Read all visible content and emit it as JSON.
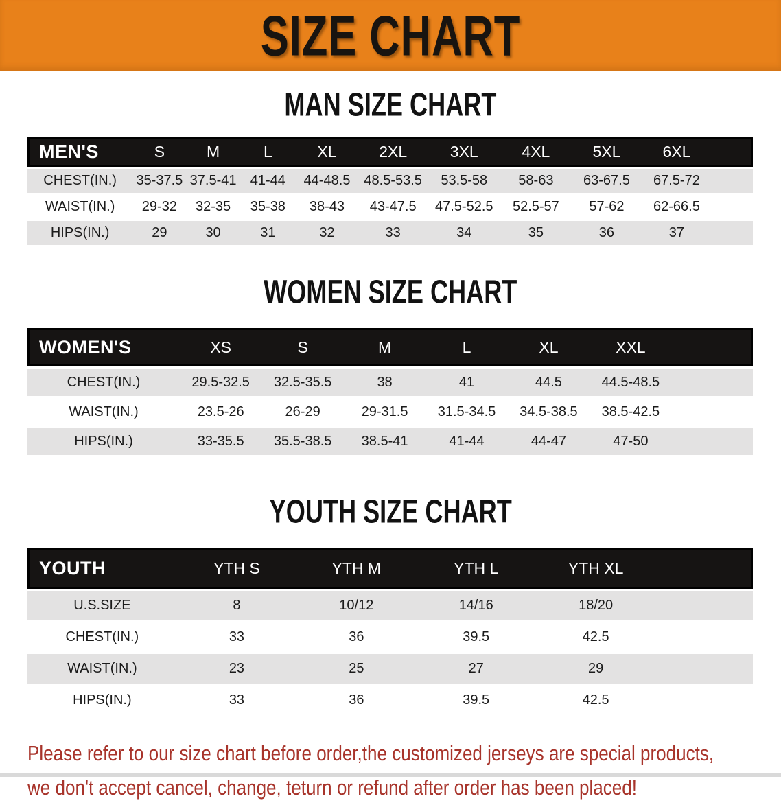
{
  "banner": {
    "title": "SIZE CHART",
    "bg_color": "#E8811A"
  },
  "sections": [
    {
      "heading": "MAN SIZE CHART",
      "table": {
        "header_label": "MEN'S",
        "columns": [
          "S",
          "M",
          "L",
          "XL",
          "2XL",
          "3XL",
          "4XL",
          "5XL",
          "6XL"
        ],
        "rows": [
          {
            "label": "CHEST(IN.)",
            "values": [
              "35-37.5",
              "37.5-41",
              "41-44",
              "44-48.5",
              "48.5-53.5",
              "53.5-58",
              "58-63",
              "63-67.5",
              "67.5-72"
            ]
          },
          {
            "label": "WAIST(IN.)",
            "values": [
              "29-32",
              "32-35",
              "35-38",
              "38-43",
              "43-47.5",
              "47.5-52.5",
              "52.5-57",
              "57-62",
              "62-66.5"
            ]
          },
          {
            "label": "HIPS(IN.)",
            "values": [
              "29",
              "30",
              "31",
              "32",
              "33",
              "34",
              "35",
              "36",
              "37"
            ]
          }
        ]
      }
    },
    {
      "heading": "WOMEN SIZE CHART",
      "table": {
        "header_label": "WOMEN'S",
        "columns": [
          "XS",
          "S",
          "M",
          "L",
          "XL",
          "XXL"
        ],
        "rows": [
          {
            "label": "CHEST(IN.)",
            "values": [
              "29.5-32.5",
              "32.5-35.5",
              "38",
              "41",
              "44.5",
              "44.5-48.5"
            ]
          },
          {
            "label": "WAIST(IN.)",
            "values": [
              "23.5-26",
              "26-29",
              "29-31.5",
              "31.5-34.5",
              "34.5-38.5",
              "38.5-42.5"
            ]
          },
          {
            "label": "HIPS(IN.)",
            "values": [
              "33-35.5",
              "35.5-38.5",
              "38.5-41",
              "41-44",
              "44-47",
              "47-50"
            ]
          }
        ]
      }
    },
    {
      "heading": "YOUTH SIZE CHART",
      "table": {
        "header_label": "YOUTH",
        "columns": [
          "YTH S",
          "YTH M",
          "YTH L",
          "YTH XL"
        ],
        "rows": [
          {
            "label": "U.S.SIZE",
            "values": [
              "8",
              "10/12",
              "14/16",
              "18/20"
            ]
          },
          {
            "label": "CHEST(IN.)",
            "values": [
              "33",
              "36",
              "39.5",
              "42.5"
            ]
          },
          {
            "label": "WAIST(IN.)",
            "values": [
              "23",
              "25",
              "27",
              "29"
            ]
          },
          {
            "label": "HIPS(IN.)",
            "values": [
              "33",
              "36",
              "39.5",
              "42.5"
            ]
          }
        ]
      }
    }
  ],
  "footer": {
    "line1": "Please refer to our size chart before order,the customized jerseys are special products,",
    "line2": "we don't accept cancel, change, teturn or refund after order has been placed!",
    "text_color": "#A8342B"
  }
}
